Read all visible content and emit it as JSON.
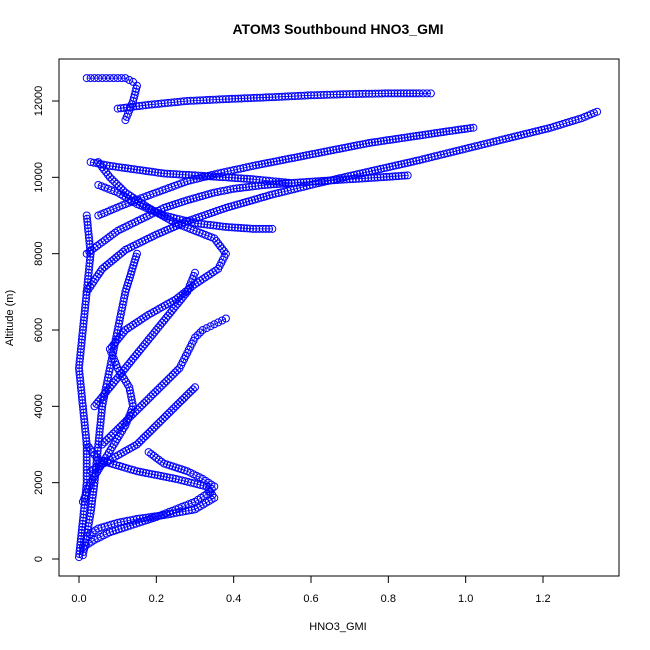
{
  "chart_data": {
    "type": "scatter",
    "title": "ATOM3 Southbound HNO3_GMI",
    "xlabel": "HNO3_GMI",
    "ylabel": "Altitude (m)",
    "xlim": [
      0,
      1.4
    ],
    "ylim": [
      0,
      12600
    ],
    "xticks": [
      "0.0",
      "0.2",
      "0.4",
      "0.6",
      "0.8",
      "1.0",
      "1.2"
    ],
    "yticks": [
      "0",
      "2000",
      "4000",
      "6000",
      "8000",
      "10000",
      "12000"
    ],
    "grid": false,
    "marker": "open-circle",
    "color": "#0000ff",
    "series": [
      {
        "x": [
          0.02,
          0.05,
          0.1,
          0.15,
          0.22,
          0.3,
          0.35,
          0.33,
          0.25,
          0.15,
          0.05,
          0.02
        ],
        "y": [
          600,
          800,
          950,
          1050,
          1150,
          1300,
          1600,
          1900,
          2100,
          2300,
          2600,
          3000
        ]
      },
      {
        "x": [
          0.01,
          0.03,
          0.06,
          0.09,
          0.12,
          0.14,
          0.13,
          0.1,
          0.08,
          0.12,
          0.18,
          0.25,
          0.3,
          0.36,
          0.38,
          0.35,
          0.25,
          0.18,
          0.12,
          0.08,
          0.05
        ],
        "y": [
          1500,
          2000,
          2500,
          3000,
          3500,
          4000,
          4500,
          5000,
          5500,
          6000,
          6400,
          6800,
          7200,
          7600,
          8000,
          8400,
          8800,
          9200,
          9600,
          10000,
          10400
        ]
      },
      {
        "x": [
          0.02,
          0.06,
          0.12,
          0.2,
          0.28,
          0.38,
          0.5,
          0.62,
          0.75,
          0.88,
          1.0,
          1.12,
          1.22,
          1.3,
          1.34
        ],
        "y": [
          7000,
          7600,
          8100,
          8500,
          8850,
          9200,
          9550,
          9850,
          10150,
          10450,
          10750,
          11050,
          11300,
          11550,
          11720
        ]
      },
      {
        "x": [
          0.1,
          0.18,
          0.28,
          0.38,
          0.5,
          0.6,
          0.7,
          0.8,
          0.88,
          0.91
        ],
        "y": [
          11800,
          11900,
          12000,
          12050,
          12100,
          12150,
          12180,
          12200,
          12200,
          12200
        ]
      },
      {
        "x": [
          0.05,
          0.1,
          0.15,
          0.22,
          0.3,
          0.38,
          0.45,
          0.5
        ],
        "y": [
          9800,
          9600,
          9300,
          9000,
          8800,
          8700,
          8650,
          8650
        ]
      },
      {
        "x": [
          0.03,
          0.08,
          0.15,
          0.22,
          0.3,
          0.38,
          0.45,
          0.5,
          0.55
        ],
        "y": [
          10400,
          10300,
          10200,
          10100,
          10050,
          10000,
          9950,
          9900,
          9850
        ]
      },
      {
        "x": [
          0.03,
          0.08,
          0.15,
          0.2,
          0.25,
          0.3
        ],
        "y": [
          2300,
          2600,
          3000,
          3500,
          4000,
          4500
        ]
      },
      {
        "x": [
          0.02,
          0.05,
          0.08,
          0.1,
          0.12,
          0.14,
          0.15,
          0.14,
          0.12
        ],
        "y": [
          12600,
          12600,
          12600,
          12600,
          12600,
          12500,
          12400,
          12000,
          11500
        ]
      },
      {
        "x": [
          0.01,
          0.02,
          0.03,
          0.04,
          0.05,
          0.06,
          0.08,
          0.1,
          0.12,
          0.15
        ],
        "y": [
          100,
          600,
          1200,
          2000,
          3000,
          4000,
          5000,
          6000,
          7000,
          8000
        ]
      },
      {
        "x": [
          0.0,
          0.01,
          0.02,
          0.02,
          0.01,
          0.0,
          0.01,
          0.02,
          0.03,
          0.02
        ],
        "y": [
          50,
          1000,
          2000,
          3000,
          4000,
          5000,
          6000,
          7000,
          8000,
          9000
        ]
      },
      {
        "x": [
          0.01,
          0.04,
          0.08,
          0.14,
          0.2,
          0.25,
          0.3,
          0.33,
          0.35,
          0.32,
          0.28,
          0.22,
          0.18
        ],
        "y": [
          300,
          500,
          700,
          900,
          1100,
          1300,
          1500,
          1700,
          1900,
          2100,
          2300,
          2500,
          2800
        ]
      },
      {
        "x": [
          0.02,
          0.06,
          0.1,
          0.16,
          0.22,
          0.28,
          0.35,
          0.4,
          0.48,
          0.55,
          0.62,
          0.7,
          0.78,
          0.85
        ],
        "y": [
          8000,
          8300,
          8600,
          8900,
          9200,
          9400,
          9600,
          9700,
          9800,
          9850,
          9900,
          9950,
          10000,
          10050
        ]
      },
      {
        "x": [
          0.05,
          0.12,
          0.2,
          0.28,
          0.36,
          0.45,
          0.55,
          0.65,
          0.75,
          0.85,
          0.95,
          1.02
        ],
        "y": [
          9000,
          9300,
          9600,
          9900,
          10100,
          10300,
          10500,
          10700,
          10900,
          11050,
          11200,
          11300
        ]
      },
      {
        "x": [
          0.04,
          0.08,
          0.12,
          0.16,
          0.2,
          0.24,
          0.28,
          0.3
        ],
        "y": [
          4000,
          4500,
          5000,
          5500,
          6000,
          6500,
          7000,
          7500
        ]
      },
      {
        "x": [
          0.06,
          0.1,
          0.14,
          0.18,
          0.22,
          0.26,
          0.28,
          0.3,
          0.32,
          0.34,
          0.36,
          0.38
        ],
        "y": [
          3000,
          3400,
          3800,
          4200,
          4600,
          5000,
          5400,
          5800,
          6000,
          6100,
          6200,
          6300
        ]
      }
    ]
  }
}
